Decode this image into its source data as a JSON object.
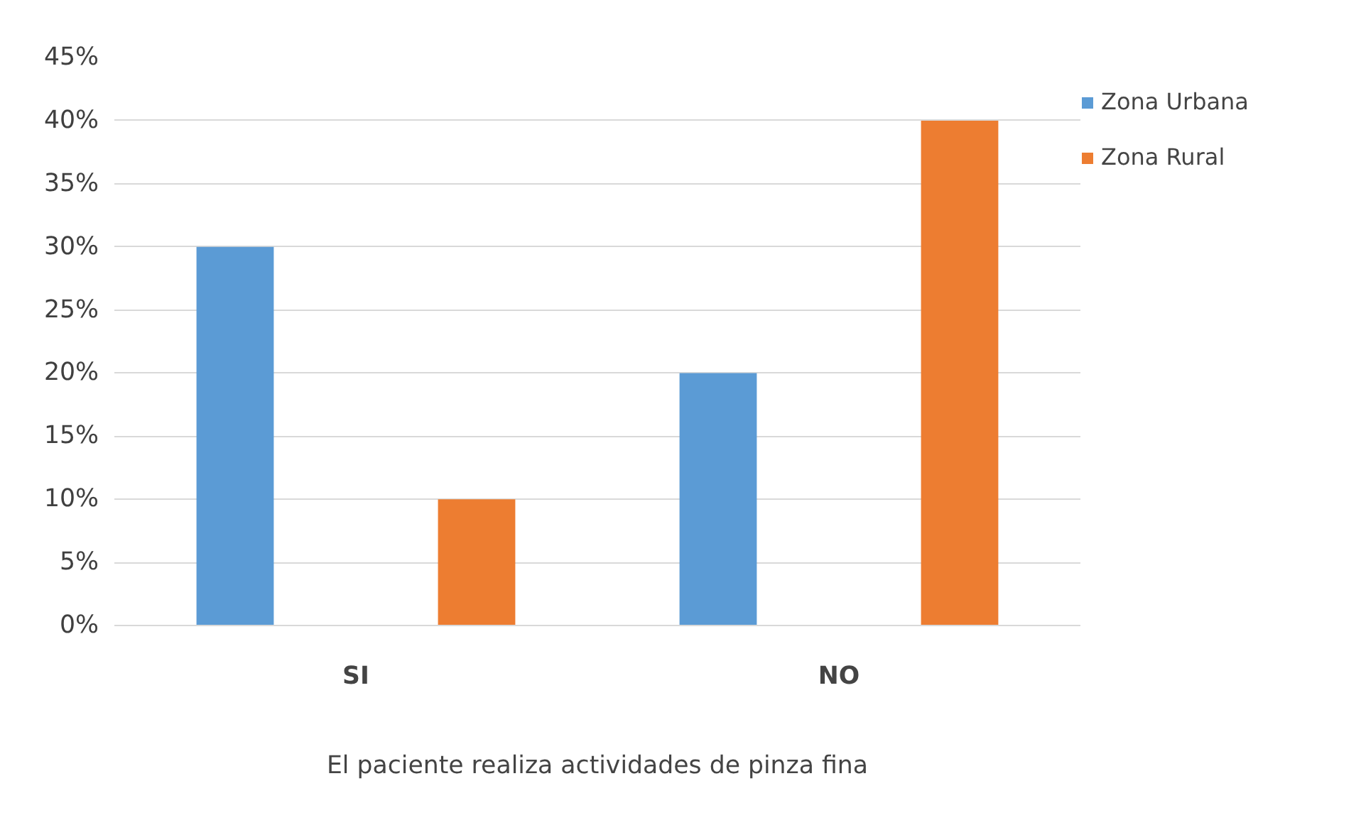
{
  "chart_data": {
    "type": "bar",
    "xlabel": "El paciente realiza actividades de pinza fina",
    "categories": [
      "SI",
      "NO"
    ],
    "series": [
      {
        "name": "Zona Urbana",
        "color": "#5b9bd5",
        "values": [
          30,
          20
        ]
      },
      {
        "name": "Zona Rural",
        "color": "#ed7d31",
        "values": [
          10,
          40
        ]
      }
    ],
    "ylim": [
      0,
      45
    ],
    "yticks": [
      {
        "value": 0,
        "label": "0%"
      },
      {
        "value": 5,
        "label": "5%"
      },
      {
        "value": 10,
        "label": "10%"
      },
      {
        "value": 15,
        "label": "15%"
      },
      {
        "value": 20,
        "label": "20%"
      },
      {
        "value": 25,
        "label": "25%"
      },
      {
        "value": 30,
        "label": "30%"
      },
      {
        "value": 35,
        "label": "35%"
      },
      {
        "value": 40,
        "label": "40%"
      },
      {
        "value": 45,
        "label": "45%"
      }
    ],
    "grid": "y",
    "legend": "top right"
  }
}
